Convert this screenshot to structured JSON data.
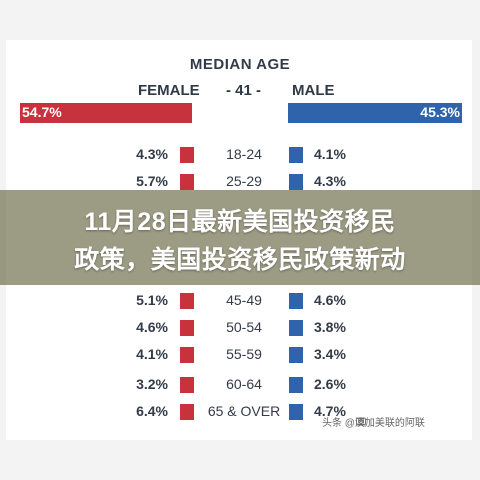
{
  "chart_data": {
    "type": "bar",
    "title": "MEDIAN AGE",
    "female_label": "FEMALE",
    "center_label": "- 41 -",
    "male_label": "MALE",
    "female_total": "54.7%",
    "male_total": "45.3%",
    "female_total_value": 54.7,
    "male_total_value": 45.3,
    "colors": {
      "female": "#c8323c",
      "male": "#2f64ad"
    },
    "categories": [
      "18-24",
      "25-29",
      "",
      "",
      "45-49",
      "50-54",
      "55-59",
      "60-64",
      "65 & OVER"
    ],
    "series": [
      {
        "name": "FEMALE",
        "values": [
          4.3,
          5.7,
          null,
          null,
          5.1,
          4.6,
          4.1,
          3.2,
          6.4
        ],
        "labels": [
          "4.3%",
          "5.7%",
          "",
          "",
          "5.1%",
          "4.6%",
          "4.1%",
          "3.2%",
          "6.4%"
        ]
      },
      {
        "name": "MALE",
        "values": [
          4.1,
          4.3,
          null,
          null,
          4.6,
          3.8,
          3.4,
          2.6,
          4.7
        ],
        "labels": [
          "4.1%",
          "4.3%",
          "",
          "",
          "4.6%",
          "3.8%",
          "3.4%",
          "2.6%",
          "4.7%"
        ]
      }
    ]
  },
  "overlay": {
    "line1": "11月28日最新美国投资移民",
    "line2": "政策，美国投资移民政策新动"
  },
  "watermark": "头条 @澳加美联的阿联",
  "icons": {
    "watermark": "camera-icon"
  }
}
